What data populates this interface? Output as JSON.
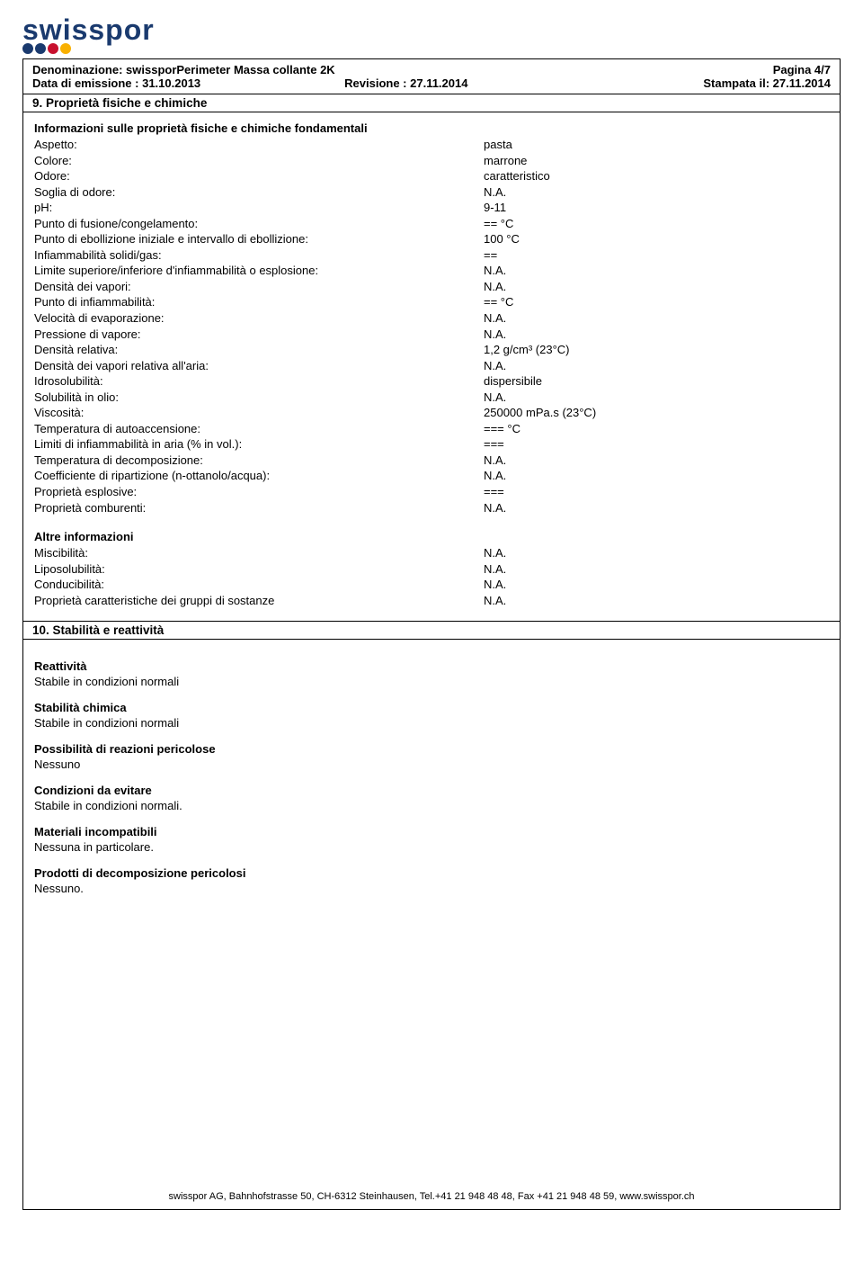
{
  "logo": {
    "text": "swisspor"
  },
  "header": {
    "row1_left_label": "Denominazione:",
    "row1_left_value": "swissporPerimeter Massa collante 2K",
    "row1_right": "Pagina 4/7",
    "row2_left": "Data di emissione : 31.10.2013",
    "row2_mid": "Revisione : 27.11.2014",
    "row2_right": "Stampata il: 27.11.2014"
  },
  "section9": {
    "title": "9. Proprietà fisiche e chimiche",
    "info_title": "Informazioni sulle proprietà fisiche e chimiche fondamentali",
    "properties": [
      {
        "label": "Aspetto:",
        "value": "pasta"
      },
      {
        "label": "Colore:",
        "value": "marrone"
      },
      {
        "label": "Odore:",
        "value": "caratteristico"
      },
      {
        "label": "Soglia di odore:",
        "value": "N.A."
      },
      {
        "label": "pH:",
        "value": "9-11"
      },
      {
        "label": "Punto di fusione/congelamento:",
        "value": "== °C"
      },
      {
        "label": "Punto di ebollizione iniziale e intervallo di ebollizione:",
        "value": "100 °C"
      },
      {
        "label": "Infiammabilità solidi/gas:",
        "value": "=="
      },
      {
        "label": "Limite superiore/inferiore d'infiammabilità o esplosione:",
        "value": "N.A."
      },
      {
        "label": "Densità dei vapori:",
        "value": "N.A."
      },
      {
        "label": "Punto di infiammabilità:",
        "value": "== °C"
      },
      {
        "label": "Velocità di evaporazione:",
        "value": "N.A."
      },
      {
        "label": "Pressione di vapore:",
        "value": "N.A."
      },
      {
        "label": "Densità relativa:",
        "value": "1,2 g/cm³ (23°C)"
      },
      {
        "label": "Densità dei vapori relativa all'aria:",
        "value": "N.A."
      },
      {
        "label": "Idrosolubilità:",
        "value": "dispersibile"
      },
      {
        "label": "Solubilità in olio:",
        "value": "N.A."
      },
      {
        "label": "Viscosità:",
        "value": "250000 mPa.s (23°C)"
      },
      {
        "label": "Temperatura di autoaccensione:",
        "value": "=== °C"
      },
      {
        "label": "Limiti di infiammabilità in aria (% in vol.):",
        "value": "==="
      },
      {
        "label": "Temperatura di decomposizione:",
        "value": "N.A."
      },
      {
        "label": "Coefficiente di ripartizione (n-ottanolo/acqua):",
        "value": "N.A."
      },
      {
        "label": "Proprietà esplosive:",
        "value": "==="
      },
      {
        "label": "Proprietà comburenti:",
        "value": "N.A."
      }
    ],
    "other_title": "Altre informazioni",
    "other_properties": [
      {
        "label": "Miscibilità:",
        "value": "N.A."
      },
      {
        "label": "Liposolubilità:",
        "value": "N.A."
      },
      {
        "label": "Conducibilità:",
        "value": "N.A."
      },
      {
        "label": "Proprietà caratteristiche dei gruppi di sostanze",
        "value": "N.A."
      }
    ]
  },
  "section10": {
    "title": "10. Stabilità e reattività",
    "groups": [
      {
        "heading": "Reattività",
        "text": "Stabile in condizioni normali"
      },
      {
        "heading": "Stabilità chimica",
        "text": "Stabile in condizioni normali"
      },
      {
        "heading": "Possibilità di reazioni pericolose",
        "text": "Nessuno"
      },
      {
        "heading": "Condizioni da evitare",
        "text": "Stabile in condizioni normali."
      },
      {
        "heading": "Materiali incompatibili",
        "text": "Nessuna in particolare."
      },
      {
        "heading": "Prodotti di decomposizione pericolosi",
        "text": "Nessuno."
      }
    ]
  },
  "footer": {
    "text": "swisspor AG, Bahnhofstrasse 50, CH-6312 Steinhausen, Tel.+41 21 948 48 48, Fax +41 21 948 48 59, www.swisspor.ch"
  }
}
